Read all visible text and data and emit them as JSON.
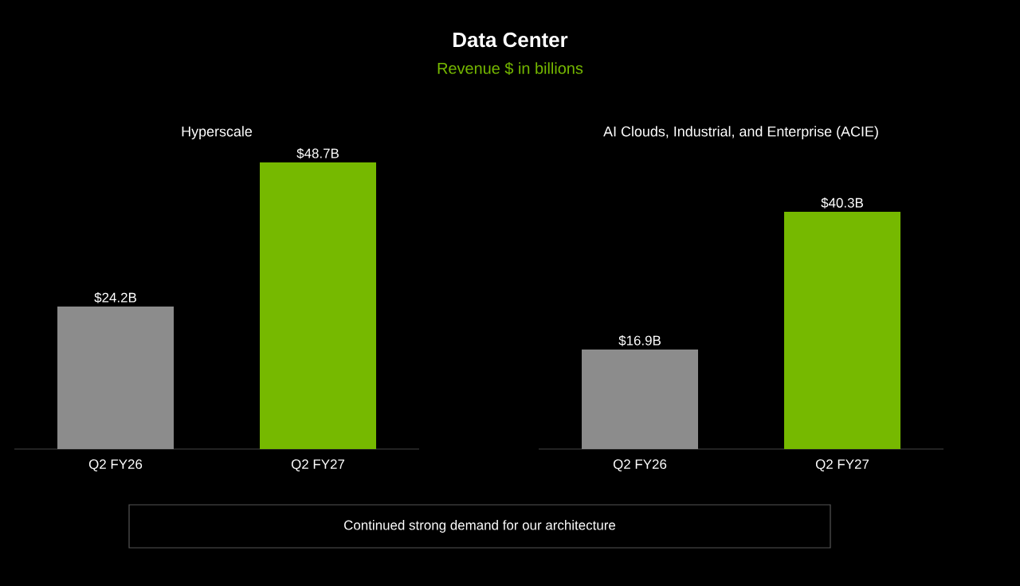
{
  "chart_data": [
    {
      "type": "other",
      "title": "Data Center",
      "subtitle": "Revenue $ in billions",
      "annotations": [
        "Continued strong demand for our architecture"
      ]
    },
    {
      "type": "bar",
      "title": "Hyperscale",
      "categories": [
        "Q2 FY26",
        "Q2 FY27"
      ],
      "values": [
        24.2,
        48.7
      ],
      "colors": [
        "#8c8c8c",
        "#76b900"
      ],
      "value_labels": [
        "$24.2B",
        "$48.7B"
      ]
    },
    {
      "type": "bar",
      "title": "AI Clouds, Industrial, and Enterprise (ACIE)",
      "categories": [
        "Q2 FY26",
        "Q2 FY27"
      ],
      "values": [
        16.9,
        40.3
      ],
      "colors": [
        "#8c8c8c",
        "#76b900"
      ],
      "value_labels": [
        "$16.9B",
        "$40.3B"
      ]
    }
  ]
}
